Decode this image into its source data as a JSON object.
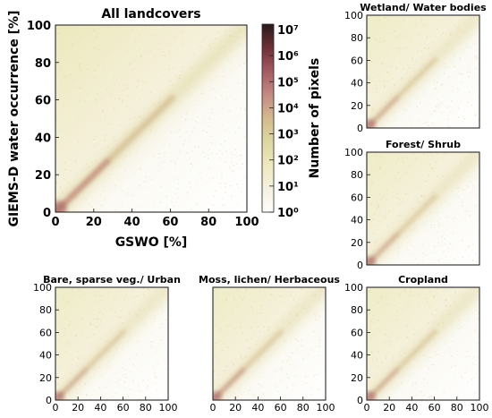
{
  "colors": {
    "cmap_stops": [
      "#fdfdfc",
      "#f6f1de",
      "#ece9bd",
      "#ddd79f",
      "#d3ba8c",
      "#c48a83",
      "#a45a5f",
      "#6e3036",
      "#2a1a1b"
    ]
  },
  "colorbar": {
    "label": "Number of pixels",
    "scale": "log",
    "tick_labels": [
      "10⁰",
      "10¹",
      "10²",
      "10³",
      "10⁴",
      "10⁵",
      "10⁶",
      "10⁷"
    ]
  },
  "chart_data": [
    {
      "type": "heatmap",
      "title": "All landcovers",
      "xlabel": "GSWO [%]",
      "ylabel": "GIEMS-D water occurrence [%]",
      "xlim": [
        0,
        100
      ],
      "ylim": [
        0,
        100
      ],
      "xticks": [
        "0",
        "20",
        "40",
        "60",
        "80",
        "100"
      ],
      "yticks": [
        "0",
        "20",
        "40",
        "60",
        "80",
        "100"
      ],
      "value": "Number of pixels (log scale, 10^0 to 10^7)",
      "diagonal_ridge": true
    },
    {
      "type": "heatmap",
      "title": "Wetland/ Water bodies",
      "xlim": [
        0,
        100
      ],
      "ylim": [
        0,
        100
      ],
      "xticks": [],
      "yticks": [
        "0",
        "20",
        "40",
        "60",
        "80",
        "100"
      ],
      "diagonal_ridge": true
    },
    {
      "type": "heatmap",
      "title": "Forest/ Shrub",
      "xlim": [
        0,
        100
      ],
      "ylim": [
        0,
        100
      ],
      "xticks": [],
      "yticks": [
        "0",
        "20",
        "40",
        "60",
        "80",
        "100"
      ],
      "diagonal_ridge": true
    },
    {
      "type": "heatmap",
      "title": "Bare, sparse veg./ Urban",
      "xlim": [
        0,
        100
      ],
      "ylim": [
        0,
        100
      ],
      "xticks": [
        "0",
        "20",
        "40",
        "60",
        "80",
        "100"
      ],
      "yticks": [
        "0",
        "20",
        "40",
        "60",
        "80",
        "100"
      ],
      "diagonal_ridge": true
    },
    {
      "type": "heatmap",
      "title": "Moss, lichen/ Herbaceous",
      "xlim": [
        0,
        100
      ],
      "ylim": [
        0,
        100
      ],
      "xticks": [
        "0",
        "20",
        "40",
        "60",
        "80",
        "100"
      ],
      "yticks": [],
      "diagonal_ridge": true
    },
    {
      "type": "heatmap",
      "title": "Cropland",
      "xlim": [
        0,
        100
      ],
      "ylim": [
        0,
        100
      ],
      "xticks": [
        "0",
        "20",
        "40",
        "60",
        "80",
        "100"
      ],
      "yticks": [
        "0",
        "20",
        "40",
        "60",
        "80",
        "100"
      ],
      "diagonal_ridge": true
    }
  ]
}
